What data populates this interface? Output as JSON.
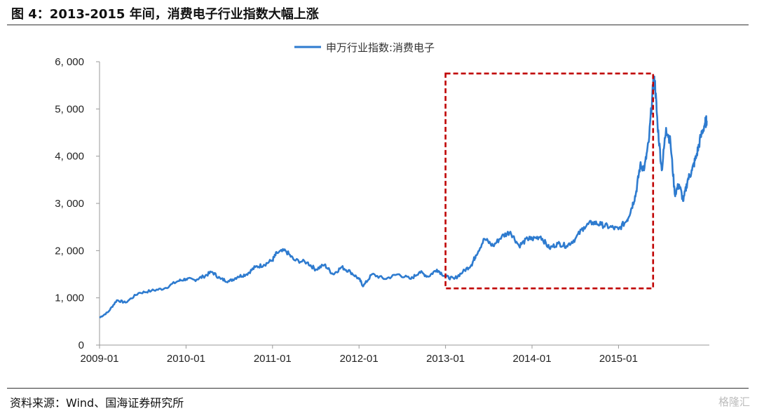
{
  "figure": {
    "title": "图 4：2013-2015 年间，消费电子行业指数大幅上涨",
    "source": "资料来源：Wind、国海证券研究所",
    "watermark": "格隆汇"
  },
  "colors": {
    "line": "#2e7bcf",
    "highlight_box": "#c00000",
    "axis": "#999999"
  },
  "chart_data": {
    "type": "line",
    "title": "",
    "xlabel": "",
    "ylabel": "",
    "ylim": [
      0,
      6000
    ],
    "yticks": [
      0,
      1000,
      2000,
      3000,
      4000,
      5000,
      6000
    ],
    "ytick_labels": [
      "0",
      "1, 000",
      "2, 000",
      "3, 000",
      "4, 000",
      "5, 000",
      "6, 000"
    ],
    "xlim": [
      2009.0,
      2016.05
    ],
    "xticks": [
      2009.0,
      2010.0,
      2011.0,
      2012.0,
      2013.0,
      2014.0,
      2015.0
    ],
    "xtick_labels": [
      "2009-01",
      "2010-01",
      "2011-01",
      "2012-01",
      "2013-01",
      "2014-01",
      "2015-01"
    ],
    "legend": "top-center",
    "grid": false,
    "series": [
      {
        "name": "申万行业指数:消费电子",
        "x": [
          2009.0,
          2009.1,
          2009.2,
          2009.3,
          2009.45,
          2009.6,
          2009.75,
          2009.9,
          2010.0,
          2010.1,
          2010.2,
          2010.3,
          2010.4,
          2010.5,
          2010.6,
          2010.7,
          2010.8,
          2010.9,
          2011.0,
          2011.05,
          2011.15,
          2011.25,
          2011.4,
          2011.5,
          2011.6,
          2011.7,
          2011.8,
          2011.9,
          2012.0,
          2012.05,
          2012.15,
          2012.3,
          2012.45,
          2012.6,
          2012.7,
          2012.8,
          2012.9,
          2013.0,
          2013.1,
          2013.2,
          2013.3,
          2013.35,
          2013.45,
          2013.55,
          2013.65,
          2013.75,
          2013.85,
          2013.95,
          2014.0,
          2014.1,
          2014.2,
          2014.3,
          2014.4,
          2014.5,
          2014.6,
          2014.7,
          2014.8,
          2014.9,
          2015.0,
          2015.1,
          2015.15,
          2015.2,
          2015.25,
          2015.3,
          2015.35,
          2015.4,
          2015.42,
          2015.45,
          2015.5,
          2015.55,
          2015.6,
          2015.65,
          2015.7,
          2015.75,
          2015.8,
          2015.85,
          2015.9,
          2015.95,
          2016.0,
          2016.02
        ],
        "y": [
          580,
          700,
          950,
          900,
          1100,
          1150,
          1200,
          1350,
          1400,
          1380,
          1450,
          1550,
          1400,
          1350,
          1450,
          1500,
          1650,
          1700,
          1800,
          1950,
          2000,
          1800,
          1750,
          1600,
          1700,
          1500,
          1650,
          1550,
          1400,
          1250,
          1500,
          1400,
          1500,
          1400,
          1550,
          1450,
          1600,
          1450,
          1400,
          1550,
          1700,
          1900,
          2250,
          2100,
          2300,
          2400,
          2100,
          2250,
          2250,
          2300,
          2050,
          2150,
          2100,
          2250,
          2500,
          2600,
          2550,
          2500,
          2450,
          2650,
          2900,
          3200,
          3800,
          3750,
          4300,
          5500,
          5600,
          4700,
          3700,
          4600,
          4300,
          3200,
          3400,
          3050,
          3500,
          3700,
          4000,
          4400,
          4700,
          4750
        ]
      }
    ],
    "highlight_region": {
      "x": [
        2013.0,
        2015.4
      ],
      "y": [
        1200,
        5750
      ]
    }
  }
}
